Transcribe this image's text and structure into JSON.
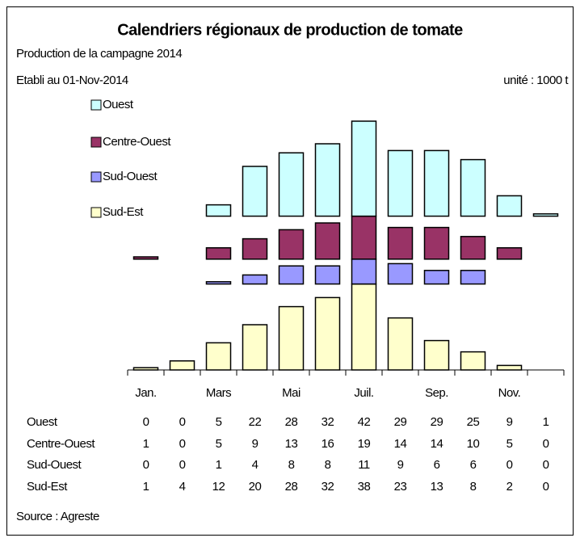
{
  "chart_data": {
    "type": "bar",
    "title": "Calendriers régionaux de production de tomate",
    "subtitle": "Production de la campagne 2014",
    "date_note": "Etabli au 01-Nov-2014",
    "unit": "unité : 1000 t",
    "source": "Source : Agreste",
    "categories": [
      "Jan.",
      null,
      "Mars",
      null,
      "Mai",
      null,
      "Juil.",
      null,
      "Sep.",
      null,
      "Nov.",
      null
    ],
    "series": [
      {
        "name": "Ouest",
        "color": "#ccffff",
        "values": [
          0,
          0,
          5,
          22,
          28,
          32,
          42,
          29,
          29,
          25,
          9,
          1
        ]
      },
      {
        "name": "Centre-Ouest",
        "color": "#993366",
        "values": [
          1,
          0,
          5,
          9,
          13,
          16,
          19,
          14,
          14,
          10,
          5,
          0
        ]
      },
      {
        "name": "Sud-Ouest",
        "color": "#9999ff",
        "values": [
          0,
          0,
          1,
          4,
          8,
          8,
          11,
          9,
          6,
          6,
          0,
          0
        ]
      },
      {
        "name": "Sud-Est",
        "color": "#ffffcc",
        "values": [
          1,
          4,
          12,
          20,
          28,
          32,
          38,
          23,
          13,
          8,
          2,
          0
        ]
      }
    ]
  }
}
